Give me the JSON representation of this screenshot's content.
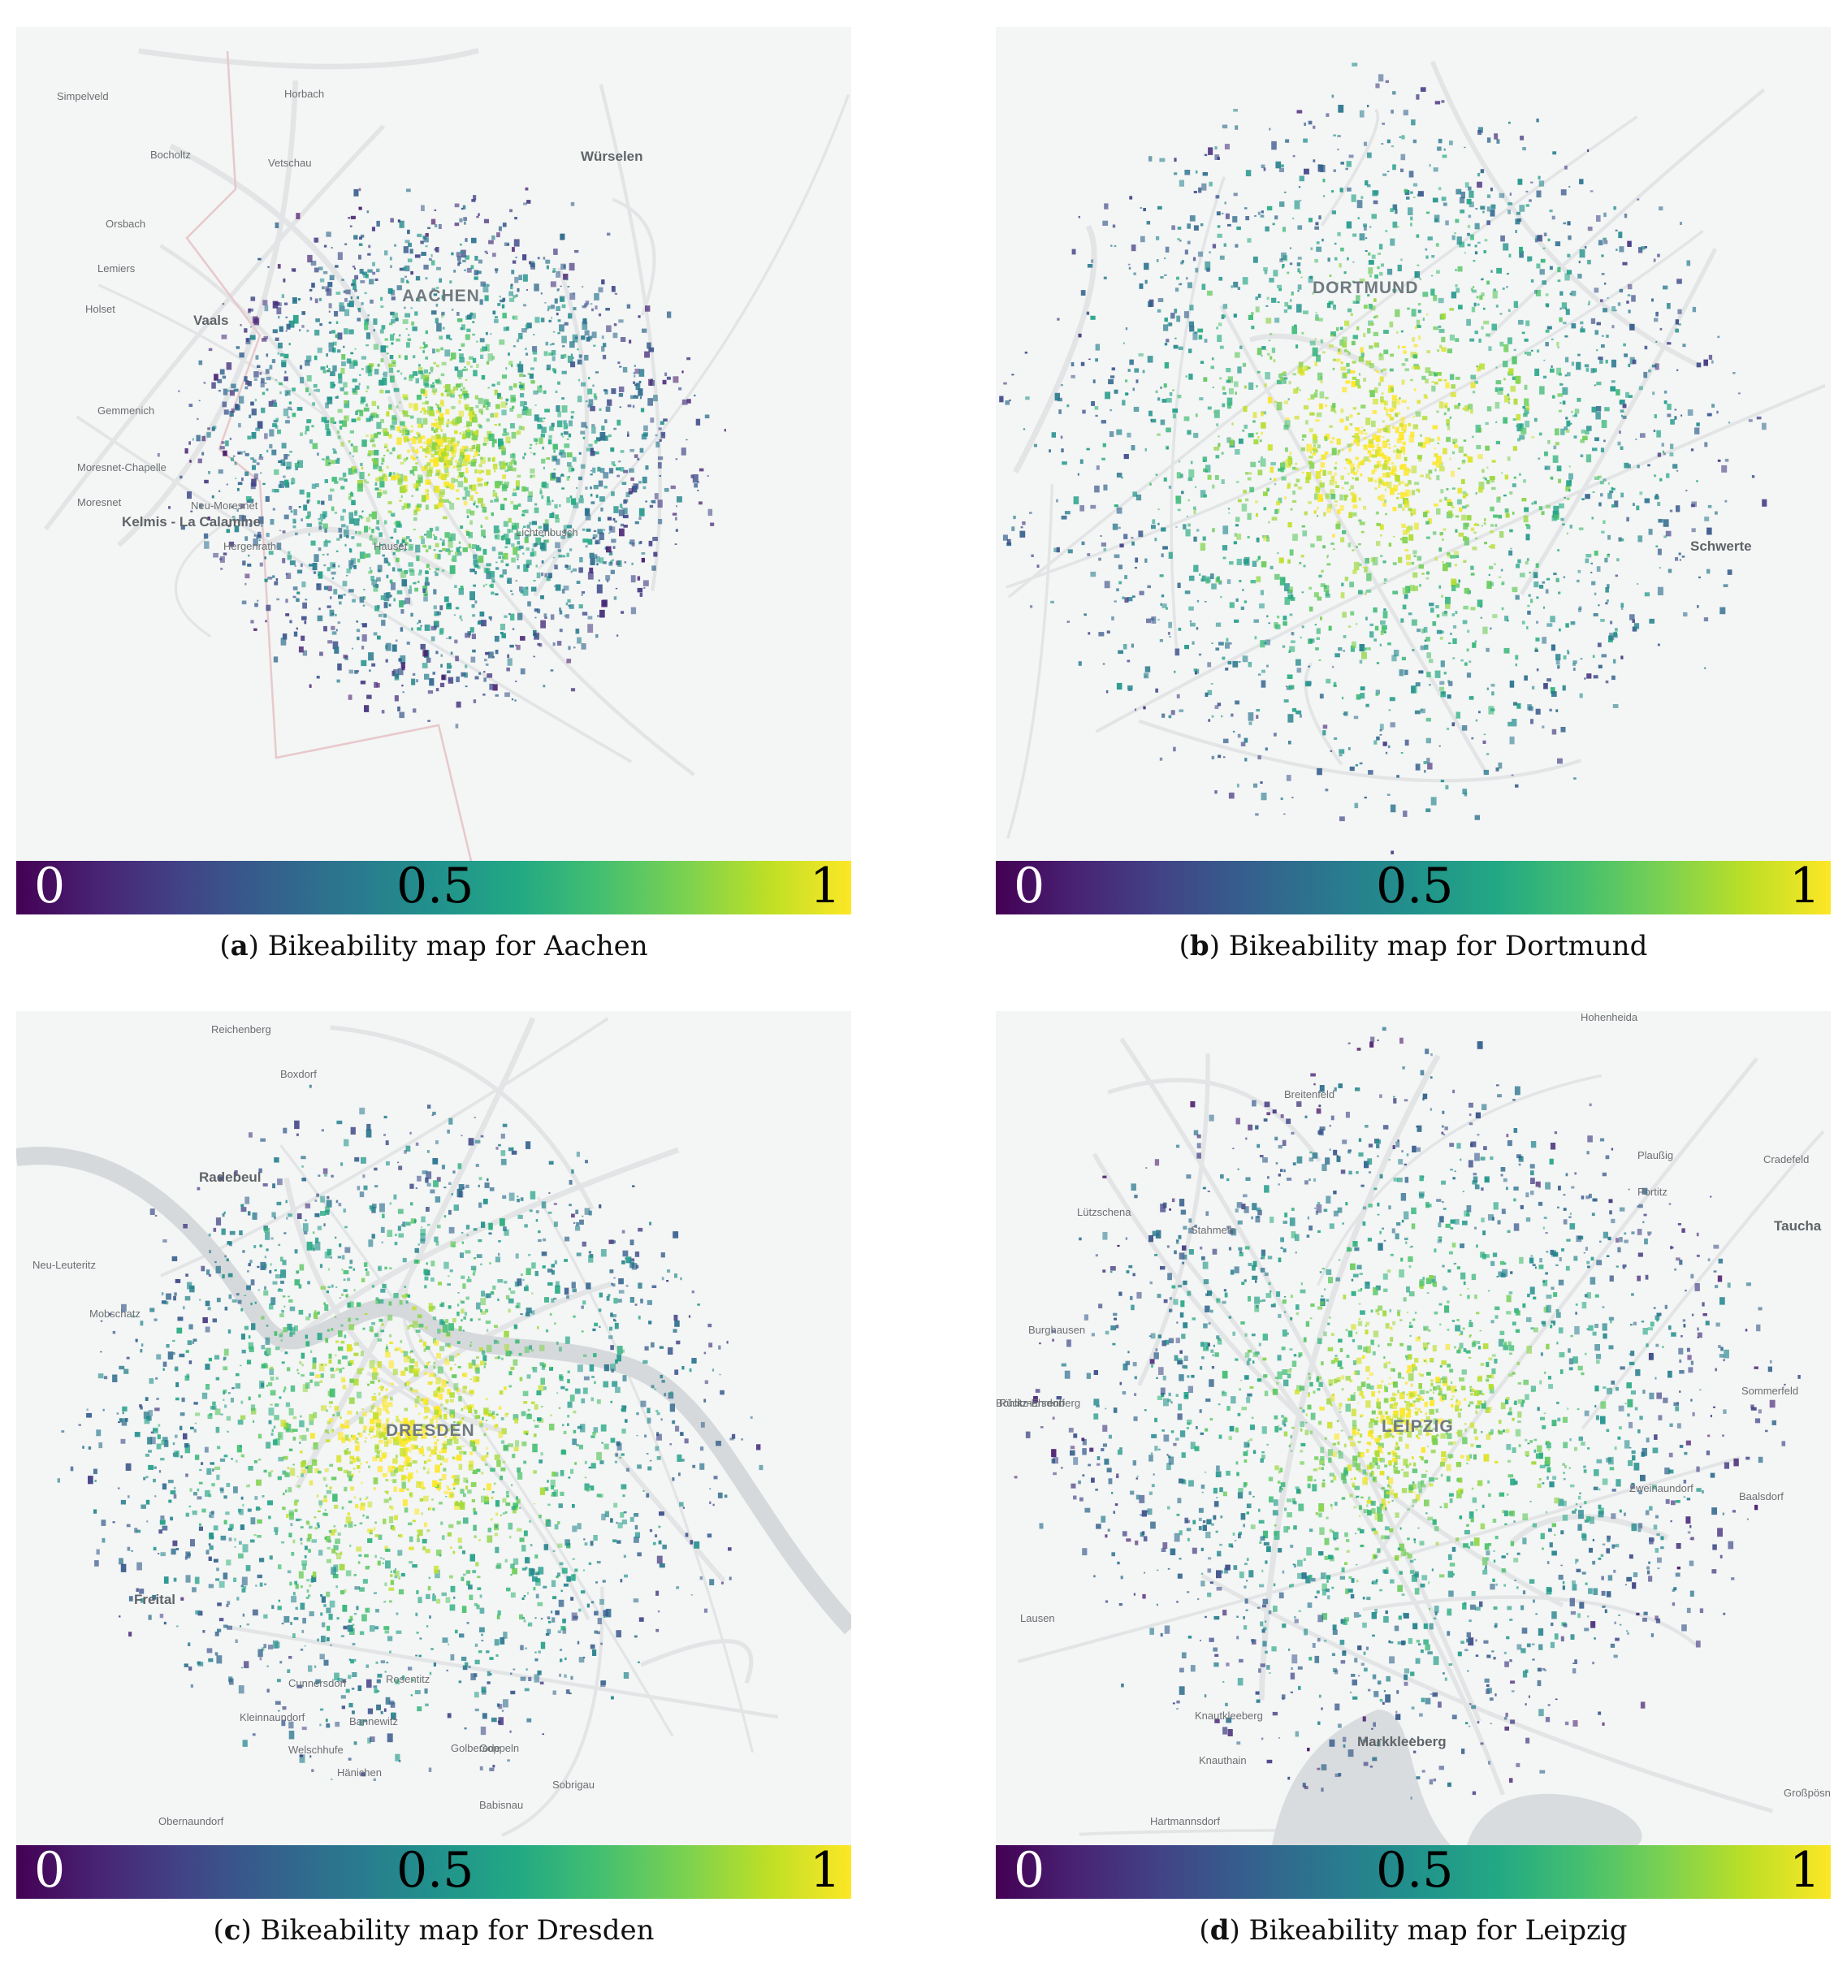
{
  "colorbar": {
    "min_label": "0",
    "mid_label": "0.5",
    "max_label": "1",
    "colormap": [
      "#440154",
      "#482475",
      "#414487",
      "#355f8d",
      "#2a788e",
      "#21918c",
      "#22a884",
      "#44bf70",
      "#7ad151",
      "#bddf26",
      "#fde725"
    ]
  },
  "panels": [
    {
      "letter": "a",
      "caption": "Bikeability map for Aachen",
      "labels": [
        {
          "text": "Simpelveld",
          "cls": ""
        },
        {
          "text": "Bocholtz",
          "cls": ""
        },
        {
          "text": "Würselen",
          "cls": "major"
        },
        {
          "text": "Orsbach",
          "cls": ""
        },
        {
          "text": "Lemiers",
          "cls": ""
        },
        {
          "text": "Holset",
          "cls": ""
        },
        {
          "text": "Vaals",
          "cls": "major"
        },
        {
          "text": "AACHEN",
          "cls": "city"
        },
        {
          "text": "Gemmenich",
          "cls": ""
        },
        {
          "text": "Moresnet-Chapelle",
          "cls": ""
        },
        {
          "text": "Moresnet",
          "cls": ""
        },
        {
          "text": "Neu-Moresnet",
          "cls": ""
        },
        {
          "text": "Kelmis - La Calamine",
          "cls": "major"
        },
        {
          "text": "Hergenrath",
          "cls": ""
        },
        {
          "text": "Hauset",
          "cls": ""
        },
        {
          "text": "Lichtenbusch",
          "cls": ""
        },
        {
          "text": "Vetschau",
          "cls": ""
        },
        {
          "text": "Horbach",
          "cls": ""
        }
      ]
    },
    {
      "letter": "b",
      "caption": "Bikeability map for Dortmund",
      "labels": [
        {
          "text": "DORTMUND",
          "cls": "city"
        },
        {
          "text": "Schwerte",
          "cls": "major"
        }
      ]
    },
    {
      "letter": "c",
      "caption": "Bikeability map for Dresden",
      "labels": [
        {
          "text": "Reichenberg",
          "cls": ""
        },
        {
          "text": "Boxdorf",
          "cls": ""
        },
        {
          "text": "Radebeul",
          "cls": "major"
        },
        {
          "text": "Neu-Leuteritz",
          "cls": ""
        },
        {
          "text": "Mobschatz",
          "cls": ""
        },
        {
          "text": "DRESDEN",
          "cls": "city"
        },
        {
          "text": "Freital",
          "cls": "major"
        },
        {
          "text": "Cunnersdorf",
          "cls": ""
        },
        {
          "text": "Rosentitz",
          "cls": ""
        },
        {
          "text": "Kleinnaundorf",
          "cls": ""
        },
        {
          "text": "Bannewitz",
          "cls": ""
        },
        {
          "text": "Goppeln",
          "cls": ""
        },
        {
          "text": "Welschhufe",
          "cls": ""
        },
        {
          "text": "Golberode",
          "cls": ""
        },
        {
          "text": "Hänichen",
          "cls": ""
        },
        {
          "text": "Sobrigau",
          "cls": ""
        },
        {
          "text": "Babisnau",
          "cls": ""
        },
        {
          "text": "Obernaundorf",
          "cls": ""
        }
      ]
    },
    {
      "letter": "d",
      "caption": "Bikeability map for Leipzig",
      "labels": [
        {
          "text": "Hohenheida",
          "cls": ""
        },
        {
          "text": "Breitenfeld",
          "cls": ""
        },
        {
          "text": "Plaußig",
          "cls": ""
        },
        {
          "text": "Cradefeld",
          "cls": ""
        },
        {
          "text": "Portitz",
          "cls": ""
        },
        {
          "text": "Lützschena",
          "cls": ""
        },
        {
          "text": "Stahmeln",
          "cls": ""
        },
        {
          "text": "Taucha",
          "cls": "major"
        },
        {
          "text": "Burghausen",
          "cls": ""
        },
        {
          "text": "Böhlitz-Ehrenberg",
          "cls": ""
        },
        {
          "text": "Sommerfeld",
          "cls": ""
        },
        {
          "text": "LEIPZIG",
          "cls": "city"
        },
        {
          "text": "Zweinaundorf",
          "cls": ""
        },
        {
          "text": "Baalsdorf",
          "cls": ""
        },
        {
          "text": "Lausen",
          "cls": ""
        },
        {
          "text": "Knautkleeberg",
          "cls": ""
        },
        {
          "text": "Markkleeberg",
          "cls": "major"
        },
        {
          "text": "Knauthain",
          "cls": ""
        },
        {
          "text": "Hartmannsdorf",
          "cls": ""
        },
        {
          "text": "Großpösna",
          "cls": ""
        },
        {
          "text": "Rückmarsdorf",
          "cls": ""
        }
      ]
    }
  ]
}
